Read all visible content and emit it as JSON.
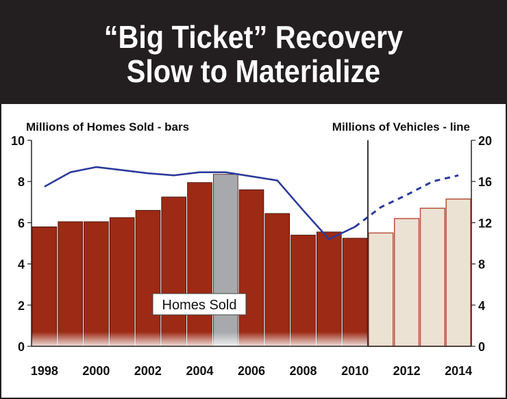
{
  "title": {
    "line1": "“Big Ticket” Recovery",
    "line2": "Slow to Materialize"
  },
  "chart_data": {
    "type": "bar",
    "title": "“Big Ticket” Recovery Slow to Materialize",
    "left_axis_label": "Millions of Homes Sold - bars",
    "right_axis_label": "Millions of Vehicles - line",
    "years": [
      1998,
      1999,
      2000,
      2001,
      2002,
      2003,
      2004,
      2005,
      2006,
      2007,
      2008,
      2009,
      2010,
      2011,
      2012,
      2013,
      2014
    ],
    "x_tick_labels": [
      "1998",
      "2000",
      "2002",
      "2004",
      "2006",
      "2008",
      "2010",
      "2012",
      "2014"
    ],
    "left_y": {
      "lim": [
        0,
        10
      ],
      "ticks": [
        "0",
        "2",
        "4",
        "6",
        "8",
        "10"
      ]
    },
    "right_y": {
      "lim": [
        0,
        20
      ],
      "ticks": [
        "0",
        "4",
        "8",
        "12",
        "16",
        "20"
      ]
    },
    "series": [
      {
        "name": "Homes Sold",
        "axis": "left",
        "kind": "bar",
        "values": [
          5.8,
          6.05,
          6.05,
          6.25,
          6.6,
          7.25,
          7.95,
          8.35,
          7.6,
          6.45,
          5.4,
          5.55,
          5.25,
          5.5,
          6.2,
          6.7,
          7.15
        ]
      },
      {
        "name": "Vehicles",
        "axis": "right",
        "kind": "line",
        "values": [
          15.5,
          16.9,
          17.4,
          17.1,
          16.8,
          16.6,
          16.9,
          16.9,
          16.5,
          16.1,
          13.2,
          10.4,
          11.6,
          13.5,
          14.7,
          16.0,
          16.6
        ]
      }
    ],
    "annotation": "Homes Sold",
    "highlight_year": 2005,
    "forecast_start_year": 2011,
    "colors": {
      "actual": "#9c2a15",
      "highlight": "#a7a9ac",
      "forecast": "#ece2d4",
      "forecast_edge": "#b8503b",
      "line": "#2b3a9c",
      "divider": "#333333"
    }
  }
}
